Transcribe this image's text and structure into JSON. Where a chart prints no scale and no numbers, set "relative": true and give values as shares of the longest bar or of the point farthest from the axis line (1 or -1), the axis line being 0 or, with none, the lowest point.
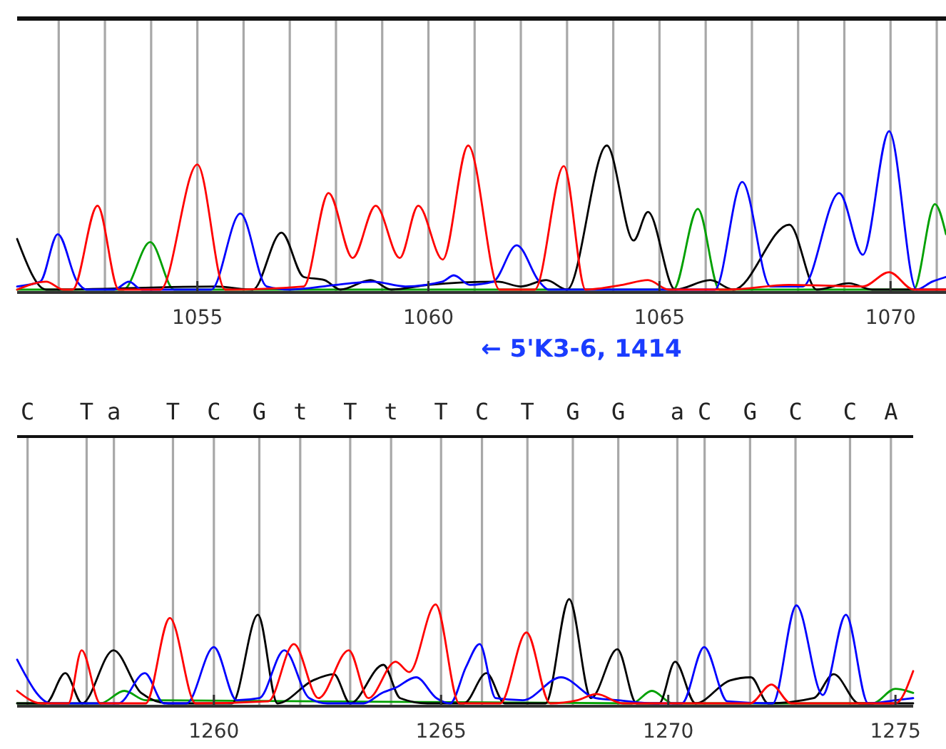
{
  "chart_data": [
    {
      "type": "line",
      "relative": true,
      "xlabel": "← 5'K3-6, 1414",
      "xlim": [
        1051.1,
        1071.2
      ],
      "xticks": [
        1055,
        1060,
        1065,
        1070
      ],
      "ref_lines": [
        {
          "axis": "x",
          "value": 1052,
          "color": "#a8a8a8"
        },
        {
          "axis": "x",
          "value": 1053,
          "color": "#a8a8a8"
        },
        {
          "axis": "x",
          "value": 1054,
          "color": "#a8a8a8"
        },
        {
          "axis": "x",
          "value": 1055,
          "color": "#a8a8a8"
        },
        {
          "axis": "x",
          "value": 1056,
          "color": "#a8a8a8"
        },
        {
          "axis": "x",
          "value": 1057,
          "color": "#a8a8a8"
        },
        {
          "axis": "x",
          "value": 1058,
          "color": "#a8a8a8"
        },
        {
          "axis": "x",
          "value": 1059,
          "color": "#a8a8a8"
        },
        {
          "axis": "x",
          "value": 1060,
          "color": "#a8a8a8"
        },
        {
          "axis": "x",
          "value": 1061,
          "color": "#a8a8a8"
        },
        {
          "axis": "x",
          "value": 1062,
          "color": "#a8a8a8"
        },
        {
          "axis": "x",
          "value": 1063,
          "color": "#a8a8a8"
        },
        {
          "axis": "x",
          "value": 1064,
          "color": "#a8a8a8"
        },
        {
          "axis": "x",
          "value": 1065,
          "color": "#a8a8a8"
        },
        {
          "axis": "x",
          "value": 1066,
          "color": "#a8a8a8"
        },
        {
          "axis": "x",
          "value": 1067,
          "color": "#a8a8a8"
        },
        {
          "axis": "x",
          "value": 1068,
          "color": "#a8a8a8"
        },
        {
          "axis": "x",
          "value": 1069,
          "color": "#a8a8a8"
        },
        {
          "axis": "x",
          "value": 1070,
          "color": "#a8a8a8"
        },
        {
          "axis": "x",
          "value": 1071,
          "color": "#a8a8a8"
        }
      ],
      "series": [
        {
          "color": "#00a000",
          "x": [
            1051.1,
            1053.4,
            1053.98,
            1054.5,
            1065.3,
            1065.83,
            1066.3,
            1070.5,
            1070.96,
            1071.2
          ],
          "values": [
            0,
            0,
            0.3,
            0,
            0,
            0.51,
            0,
            0,
            0.54,
            0.35
          ]
        },
        {
          "color": "#000000",
          "x": [
            1051.1,
            1051.73,
            1055.4,
            1056.2,
            1056.82,
            1057.3,
            1057.75,
            1058.1,
            1058.75,
            1059.2,
            1060,
            1061.5,
            1062,
            1062.55,
            1063,
            1063.86,
            1064.44,
            1064.75,
            1065.34,
            1066.1,
            1066.6,
            1067.81,
            1068.4,
            1069.1,
            1069.6,
            1071.2
          ],
          "values": [
            0.32,
            0,
            0.02,
            0,
            0.36,
            0.08,
            0.06,
            0,
            0.06,
            0,
            0.03,
            0.05,
            0.02,
            0.06,
            0,
            0.91,
            0.31,
            0.49,
            0,
            0.06,
            0,
            0.41,
            0,
            0.04,
            0,
            0
          ]
        },
        {
          "color": "#0000ff",
          "x": [
            1051.1,
            1051.6,
            1051.98,
            1052.4,
            1052.6,
            1053.2,
            1053.52,
            1053.8,
            1055.3,
            1055.93,
            1056.5,
            1057,
            1058,
            1058.8,
            1059.5,
            1060.3,
            1060.55,
            1060.9,
            1061.4,
            1061.91,
            1062.4,
            1062.6,
            1066.2,
            1066.79,
            1067.4,
            1068.1,
            1068.89,
            1069.4,
            1069.97,
            1070.56,
            1070.9,
            1071.2
          ],
          "values": [
            0.02,
            0.05,
            0.35,
            0.05,
            0,
            0,
            0.05,
            0,
            0,
            0.48,
            0.02,
            0,
            0.03,
            0.05,
            0.02,
            0.05,
            0.09,
            0.03,
            0.05,
            0.28,
            0.05,
            0,
            0,
            0.68,
            0.02,
            0.02,
            0.61,
            0.22,
            1,
            0,
            0.05,
            0.08
          ]
        },
        {
          "color": "#ff0000",
          "x": [
            1051.1,
            1051.73,
            1052.1,
            1052.3,
            1052.84,
            1053.3,
            1054.2,
            1055,
            1055.6,
            1057.3,
            1057.84,
            1058.36,
            1058.86,
            1059.38,
            1059.78,
            1060.31,
            1060.86,
            1061.54,
            1062.3,
            1062.93,
            1063.4,
            1064.2,
            1064.75,
            1065.2,
            1066.5,
            1067.8,
            1069.4,
            1069.97,
            1070.5,
            1071.2
          ],
          "values": [
            0,
            0.05,
            0,
            0,
            0.53,
            0,
            0,
            0.79,
            0,
            0.02,
            0.61,
            0.2,
            0.53,
            0.2,
            0.53,
            0.19,
            0.91,
            0,
            0,
            0.78,
            0,
            0.03,
            0.06,
            0,
            0,
            0.03,
            0.02,
            0.11,
            0,
            0
          ]
        }
      ]
    },
    {
      "type": "line",
      "relative": true,
      "xlim": [
        1255.67,
        1275.39
      ],
      "xticks": [
        1260,
        1265,
        1270,
        1275
      ],
      "ref_lines": [
        {
          "axis": "x",
          "value": 1255.9,
          "label": "C",
          "color": "#a8a8a8"
        },
        {
          "axis": "x",
          "value": 1257.2,
          "label": "T",
          "color": "#a8a8a8"
        },
        {
          "axis": "x",
          "value": 1257.8,
          "label": "a",
          "color": "#a8a8a8"
        },
        {
          "axis": "x",
          "value": 1259.1,
          "label": "T",
          "color": "#a8a8a8"
        },
        {
          "axis": "x",
          "value": 1260,
          "label": "C",
          "color": "#a8a8a8"
        },
        {
          "axis": "x",
          "value": 1261,
          "label": "G",
          "color": "#a8a8a8"
        },
        {
          "axis": "x",
          "value": 1261.9,
          "label": "t",
          "color": "#a8a8a8"
        },
        {
          "axis": "x",
          "value": 1263,
          "label": "T",
          "color": "#a8a8a8"
        },
        {
          "axis": "x",
          "value": 1263.9,
          "label": "t",
          "color": "#a8a8a8"
        },
        {
          "axis": "x",
          "value": 1265,
          "label": "T",
          "color": "#a8a8a8"
        },
        {
          "axis": "x",
          "value": 1265.9,
          "label": "C",
          "color": "#a8a8a8"
        },
        {
          "axis": "x",
          "value": 1266.9,
          "label": "T",
          "color": "#a8a8a8"
        },
        {
          "axis": "x",
          "value": 1267.9,
          "label": "G",
          "color": "#a8a8a8"
        },
        {
          "axis": "x",
          "value": 1268.9,
          "label": "G",
          "color": "#a8a8a8"
        },
        {
          "axis": "x",
          "value": 1270.2,
          "label": "a",
          "color": "#a8a8a8"
        },
        {
          "axis": "x",
          "value": 1270.8,
          "label": "C",
          "color": "#a8a8a8"
        },
        {
          "axis": "x",
          "value": 1271.8,
          "label": "G",
          "color": "#a8a8a8"
        },
        {
          "axis": "x",
          "value": 1272.8,
          "label": "C",
          "color": "#a8a8a8"
        },
        {
          "axis": "x",
          "value": 1274,
          "label": "C",
          "color": "#a8a8a8"
        },
        {
          "axis": "x",
          "value": 1274.9,
          "label": "A",
          "color": "#a8a8a8"
        }
      ],
      "series": [
        {
          "color": "#00a000",
          "x": [
            1255.67,
            1257.5,
            1258.03,
            1258.5,
            1269.2,
            1269.64,
            1270.1,
            1274.5,
            1275,
            1275.39
          ],
          "values": [
            0,
            0,
            0.12,
            0.03,
            0,
            0.12,
            0,
            0,
            0.14,
            0.1
          ]
        },
        {
          "color": "#000000",
          "x": [
            1255.67,
            1256.3,
            1256.73,
            1257.1,
            1257.79,
            1258.4,
            1259,
            1260.4,
            1260.97,
            1261.4,
            1262.18,
            1262.64,
            1263,
            1263.73,
            1264.1,
            1264.7,
            1265.5,
            1266,
            1266.4,
            1267.3,
            1267.82,
            1268.3,
            1268.88,
            1269.3,
            1269.8,
            1270.15,
            1270.6,
            1271.36,
            1271.82,
            1272.2,
            1273.2,
            1273.64,
            1274.2,
            1275.39
          ],
          "values": [
            0,
            0,
            0.29,
            0,
            0.51,
            0.1,
            0,
            0,
            0.85,
            0,
            0.22,
            0.28,
            0,
            0.37,
            0.05,
            0,
            0,
            0.29,
            0,
            0,
            1,
            0.05,
            0.52,
            0,
            0,
            0.4,
            0,
            0.22,
            0.25,
            0,
            0.05,
            0.28,
            0,
            0
          ]
        },
        {
          "color": "#0000ff",
          "x": [
            1255.67,
            1256.42,
            1257.9,
            1258.48,
            1258.9,
            1259.4,
            1260,
            1260.5,
            1261,
            1261.55,
            1262.1,
            1262.5,
            1263.3,
            1263.7,
            1264,
            1264.45,
            1264.9,
            1265.2,
            1265.55,
            1265.85,
            1266.2,
            1266.8,
            1267.64,
            1268.4,
            1268.9,
            1269.7,
            1270.3,
            1270.79,
            1271.3,
            1272.3,
            1272.82,
            1273.4,
            1273.91,
            1274.4,
            1275,
            1275.39
          ],
          "values": [
            0.42,
            0,
            0,
            0.29,
            0,
            0,
            0.54,
            0.03,
            0.05,
            0.51,
            0.05,
            0,
            0,
            0.1,
            0.15,
            0.25,
            0.05,
            0,
            0.35,
            0.57,
            0.05,
            0.03,
            0.25,
            0.05,
            0.03,
            0,
            0,
            0.54,
            0.02,
            0,
            0.94,
            0.08,
            0.85,
            0,
            0.03,
            0.05
          ]
        },
        {
          "color": "#ff0000",
          "x": [
            1255.67,
            1256.2,
            1256.8,
            1257.09,
            1257.5,
            1258.5,
            1259.03,
            1259.6,
            1261.2,
            1261.76,
            1262.3,
            1262.97,
            1263.4,
            1264,
            1264.3,
            1264.88,
            1265.4,
            1266.3,
            1266.88,
            1267.4,
            1268,
            1268.42,
            1269,
            1271.8,
            1272.27,
            1272.7,
            1275,
            1275.39
          ],
          "values": [
            0.12,
            0,
            0,
            0.51,
            0,
            0,
            0.82,
            0,
            0.02,
            0.57,
            0.05,
            0.51,
            0.05,
            0.4,
            0.3,
            0.95,
            0,
            0,
            0.68,
            0,
            0.03,
            0.09,
            0,
            0,
            0.18,
            0,
            0,
            0.31
          ]
        }
      ]
    }
  ]
}
